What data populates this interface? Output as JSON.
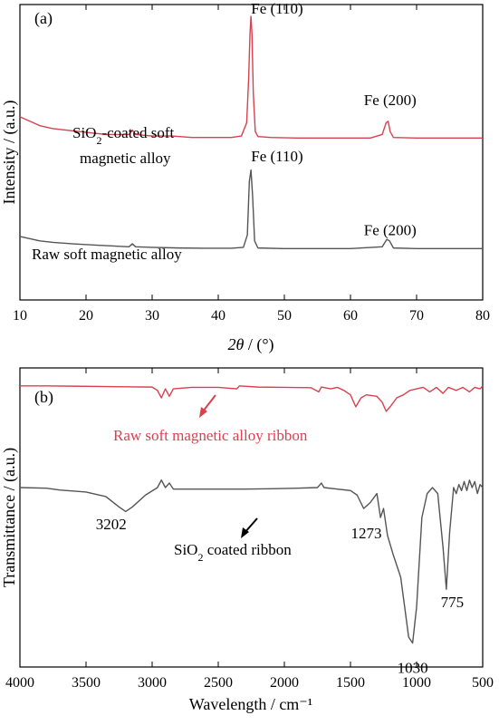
{
  "chart_data": [
    {
      "type": "line",
      "panel_label": "(a)",
      "xlabel_italic": "2θ",
      "xlabel_rest": " / (°)",
      "ylabel": "Intensity / (a.u.)",
      "xlim": [
        10,
        80
      ],
      "x_ticks": [
        10,
        20,
        30,
        40,
        50,
        60,
        70,
        80
      ],
      "ylim": [
        0,
        1
      ],
      "y_ticks_shown": false,
      "series": [
        {
          "color": "#d9414f",
          "label_line1_pre": "SiO",
          "label_line1_sub": "2",
          "label_line1_post": "-coated soft",
          "label_line2": "magnetic alloy",
          "points": [
            [
              10,
              0.62
            ],
            [
              11,
              0.61
            ],
            [
              12,
              0.6
            ],
            [
              13,
              0.59
            ],
            [
              14,
              0.585
            ],
            [
              15,
              0.58
            ],
            [
              17,
              0.575
            ],
            [
              19,
              0.57
            ],
            [
              21,
              0.565
            ],
            [
              23,
              0.56
            ],
            [
              25,
              0.56
            ],
            [
              26.5,
              0.56
            ],
            [
              27,
              0.575
            ],
            [
              27.5,
              0.56
            ],
            [
              30,
              0.555
            ],
            [
              33,
              0.555
            ],
            [
              36,
              0.55
            ],
            [
              38,
              0.55
            ],
            [
              40,
              0.55
            ],
            [
              42,
              0.55
            ],
            [
              43.5,
              0.555
            ],
            [
              44.3,
              0.6
            ],
            [
              44.6,
              0.75
            ],
            [
              44.8,
              0.9
            ],
            [
              44.95,
              0.96
            ],
            [
              45.1,
              0.9
            ],
            [
              45.3,
              0.7
            ],
            [
              45.6,
              0.57
            ],
            [
              46,
              0.553
            ],
            [
              48,
              0.55
            ],
            [
              52,
              0.548
            ],
            [
              56,
              0.548
            ],
            [
              60,
              0.548
            ],
            [
              63,
              0.548
            ],
            [
              64.8,
              0.56
            ],
            [
              65.4,
              0.6
            ],
            [
              65.7,
              0.605
            ],
            [
              66,
              0.57
            ],
            [
              66.5,
              0.55
            ],
            [
              70,
              0.548
            ],
            [
              75,
              0.548
            ],
            [
              80,
              0.548
            ]
          ]
        },
        {
          "color": "#555555",
          "label": "Raw soft magnetic alloy",
          "points": [
            [
              10,
              0.215
            ],
            [
              11,
              0.21
            ],
            [
              12,
              0.205
            ],
            [
              13,
              0.2
            ],
            [
              15,
              0.195
            ],
            [
              18,
              0.19
            ],
            [
              22,
              0.185
            ],
            [
              26.5,
              0.18
            ],
            [
              27,
              0.19
            ],
            [
              27.5,
              0.18
            ],
            [
              30,
              0.178
            ],
            [
              34,
              0.176
            ],
            [
              38,
              0.175
            ],
            [
              42,
              0.175
            ],
            [
              43.8,
              0.178
            ],
            [
              44.4,
              0.22
            ],
            [
              44.7,
              0.4
            ],
            [
              44.95,
              0.44
            ],
            [
              45.2,
              0.35
            ],
            [
              45.5,
              0.2
            ],
            [
              46,
              0.176
            ],
            [
              50,
              0.174
            ],
            [
              55,
              0.174
            ],
            [
              60,
              0.174
            ],
            [
              64.8,
              0.18
            ],
            [
              65.5,
              0.205
            ],
            [
              65.9,
              0.2
            ],
            [
              66.5,
              0.176
            ],
            [
              70,
              0.174
            ],
            [
              75,
              0.174
            ],
            [
              80,
              0.174
            ]
          ]
        }
      ],
      "annotations": [
        {
          "text": "Fe (110)",
          "x": 48.9,
          "y": 0.97
        },
        {
          "text": "Fe (200)",
          "x": 66,
          "y": 0.66
        },
        {
          "text": "Fe (110)",
          "x": 48.9,
          "y": 0.47
        },
        {
          "text": "Fe (200)",
          "x": 66,
          "y": 0.22
        }
      ]
    },
    {
      "type": "line",
      "panel_label": "(b)",
      "xlabel": "Wavelength / cm⁻¹",
      "ylabel": "Transmittance / (a.u.)",
      "xlim": [
        4000,
        500
      ],
      "x_ticks": [
        4000,
        3500,
        3000,
        2500,
        2000,
        1500,
        1000,
        500
      ],
      "ylim": [
        0,
        1
      ],
      "y_ticks_shown": false,
      "series": [
        {
          "color": "#d9414f",
          "label": "Raw soft magnetic alloy ribbon",
          "points": [
            [
              4000,
              0.94
            ],
            [
              3800,
              0.94
            ],
            [
              3600,
              0.939
            ],
            [
              3400,
              0.938
            ],
            [
              3200,
              0.937
            ],
            [
              3000,
              0.936
            ],
            [
              2960,
              0.925
            ],
            [
              2930,
              0.9
            ],
            [
              2900,
              0.93
            ],
            [
              2870,
              0.905
            ],
            [
              2840,
              0.93
            ],
            [
              2700,
              0.935
            ],
            [
              2500,
              0.935
            ],
            [
              2360,
              0.93
            ],
            [
              2340,
              0.94
            ],
            [
              2200,
              0.936
            ],
            [
              2000,
              0.935
            ],
            [
              1800,
              0.934
            ],
            [
              1740,
              0.92
            ],
            [
              1720,
              0.936
            ],
            [
              1650,
              0.93
            ],
            [
              1600,
              0.935
            ],
            [
              1550,
              0.925
            ],
            [
              1500,
              0.91
            ],
            [
              1460,
              0.87
            ],
            [
              1420,
              0.9
            ],
            [
              1380,
              0.91
            ],
            [
              1300,
              0.905
            ],
            [
              1260,
              0.885
            ],
            [
              1230,
              0.855
            ],
            [
              1200,
              0.87
            ],
            [
              1150,
              0.9
            ],
            [
              1100,
              0.91
            ],
            [
              1050,
              0.925
            ],
            [
              1000,
              0.93
            ],
            [
              950,
              0.935
            ],
            [
              900,
              0.92
            ],
            [
              850,
              0.935
            ],
            [
              800,
              0.915
            ],
            [
              760,
              0.935
            ],
            [
              700,
              0.925
            ],
            [
              650,
              0.935
            ],
            [
              600,
              0.92
            ],
            [
              560,
              0.935
            ],
            [
              520,
              0.93
            ],
            [
              500,
              0.94
            ]
          ]
        },
        {
          "color": "#555555",
          "label_pre": "SiO",
          "label_sub": "2",
          "label_post": " coated ribbon",
          "points": [
            [
              4000,
              0.6
            ],
            [
              3800,
              0.598
            ],
            [
              3700,
              0.592
            ],
            [
              3500,
              0.585
            ],
            [
              3350,
              0.57
            ],
            [
              3250,
              0.535
            ],
            [
              3200,
              0.52
            ],
            [
              3150,
              0.535
            ],
            [
              3050,
              0.575
            ],
            [
              2960,
              0.6
            ],
            [
              2930,
              0.625
            ],
            [
              2900,
              0.6
            ],
            [
              2870,
              0.615
            ],
            [
              2840,
              0.595
            ],
            [
              2700,
              0.595
            ],
            [
              2500,
              0.595
            ],
            [
              2300,
              0.595
            ],
            [
              2100,
              0.596
            ],
            [
              1900,
              0.598
            ],
            [
              1750,
              0.6
            ],
            [
              1720,
              0.615
            ],
            [
              1700,
              0.6
            ],
            [
              1600,
              0.595
            ],
            [
              1500,
              0.59
            ],
            [
              1450,
              0.575
            ],
            [
              1400,
              0.53
            ],
            [
              1350,
              0.55
            ],
            [
              1300,
              0.58
            ],
            [
              1273,
              0.5
            ],
            [
              1250,
              0.53
            ],
            [
              1220,
              0.44
            ],
            [
              1180,
              0.38
            ],
            [
              1120,
              0.3
            ],
            [
              1060,
              0.1
            ],
            [
              1030,
              0.08
            ],
            [
              1000,
              0.2
            ],
            [
              960,
              0.5
            ],
            [
              920,
              0.58
            ],
            [
              880,
              0.6
            ],
            [
              840,
              0.58
            ],
            [
              800,
              0.4
            ],
            [
              775,
              0.26
            ],
            [
              750,
              0.45
            ],
            [
              720,
              0.6
            ],
            [
              700,
              0.58
            ],
            [
              680,
              0.61
            ],
            [
              660,
              0.59
            ],
            [
              640,
              0.62
            ],
            [
              620,
              0.59
            ],
            [
              600,
              0.625
            ],
            [
              580,
              0.6
            ],
            [
              560,
              0.62
            ],
            [
              540,
              0.58
            ],
            [
              520,
              0.61
            ],
            [
              500,
              0.6
            ]
          ]
        }
      ],
      "annotations": [
        {
          "text": "3202",
          "x": 3310,
          "y": 0.46
        },
        {
          "text": "1273",
          "x": 1380,
          "y": 0.43
        },
        {
          "text": "1030",
          "x": 1030,
          "y": -0.02
        },
        {
          "text": "775",
          "x": 730,
          "y": 0.2
        }
      ]
    }
  ]
}
